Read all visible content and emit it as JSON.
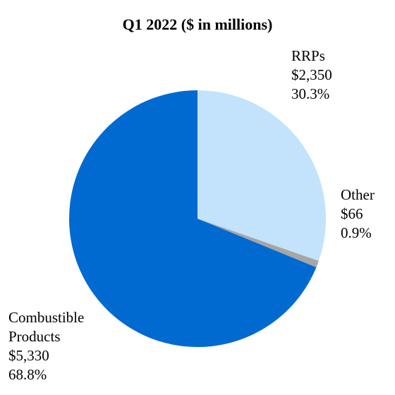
{
  "chart_data": {
    "type": "pie",
    "title": "Q1 2022 ($ in millions)",
    "start_angle_deg": 90,
    "direction": "clockwise",
    "colors": {
      "RRPs": "#c3e3fc",
      "Other": "#a6a6a6",
      "Combustible Products": "#006ad1"
    },
    "slices": [
      {
        "name": "RRPs",
        "label_lines": [
          "RRPs"
        ],
        "value_label": "$2,350",
        "percent_label": "30.3%",
        "value": 2350,
        "percent": 30.3
      },
      {
        "name": "Other",
        "label_lines": [
          "Other"
        ],
        "value_label": "$66",
        "percent_label": "0.9%",
        "value": 66,
        "percent": 0.9
      },
      {
        "name": "Combustible Products",
        "label_lines": [
          "Combustible",
          "Products"
        ],
        "value_label": "$5,330",
        "percent_label": "68.8%",
        "value": 5330,
        "percent": 68.8
      }
    ]
  }
}
